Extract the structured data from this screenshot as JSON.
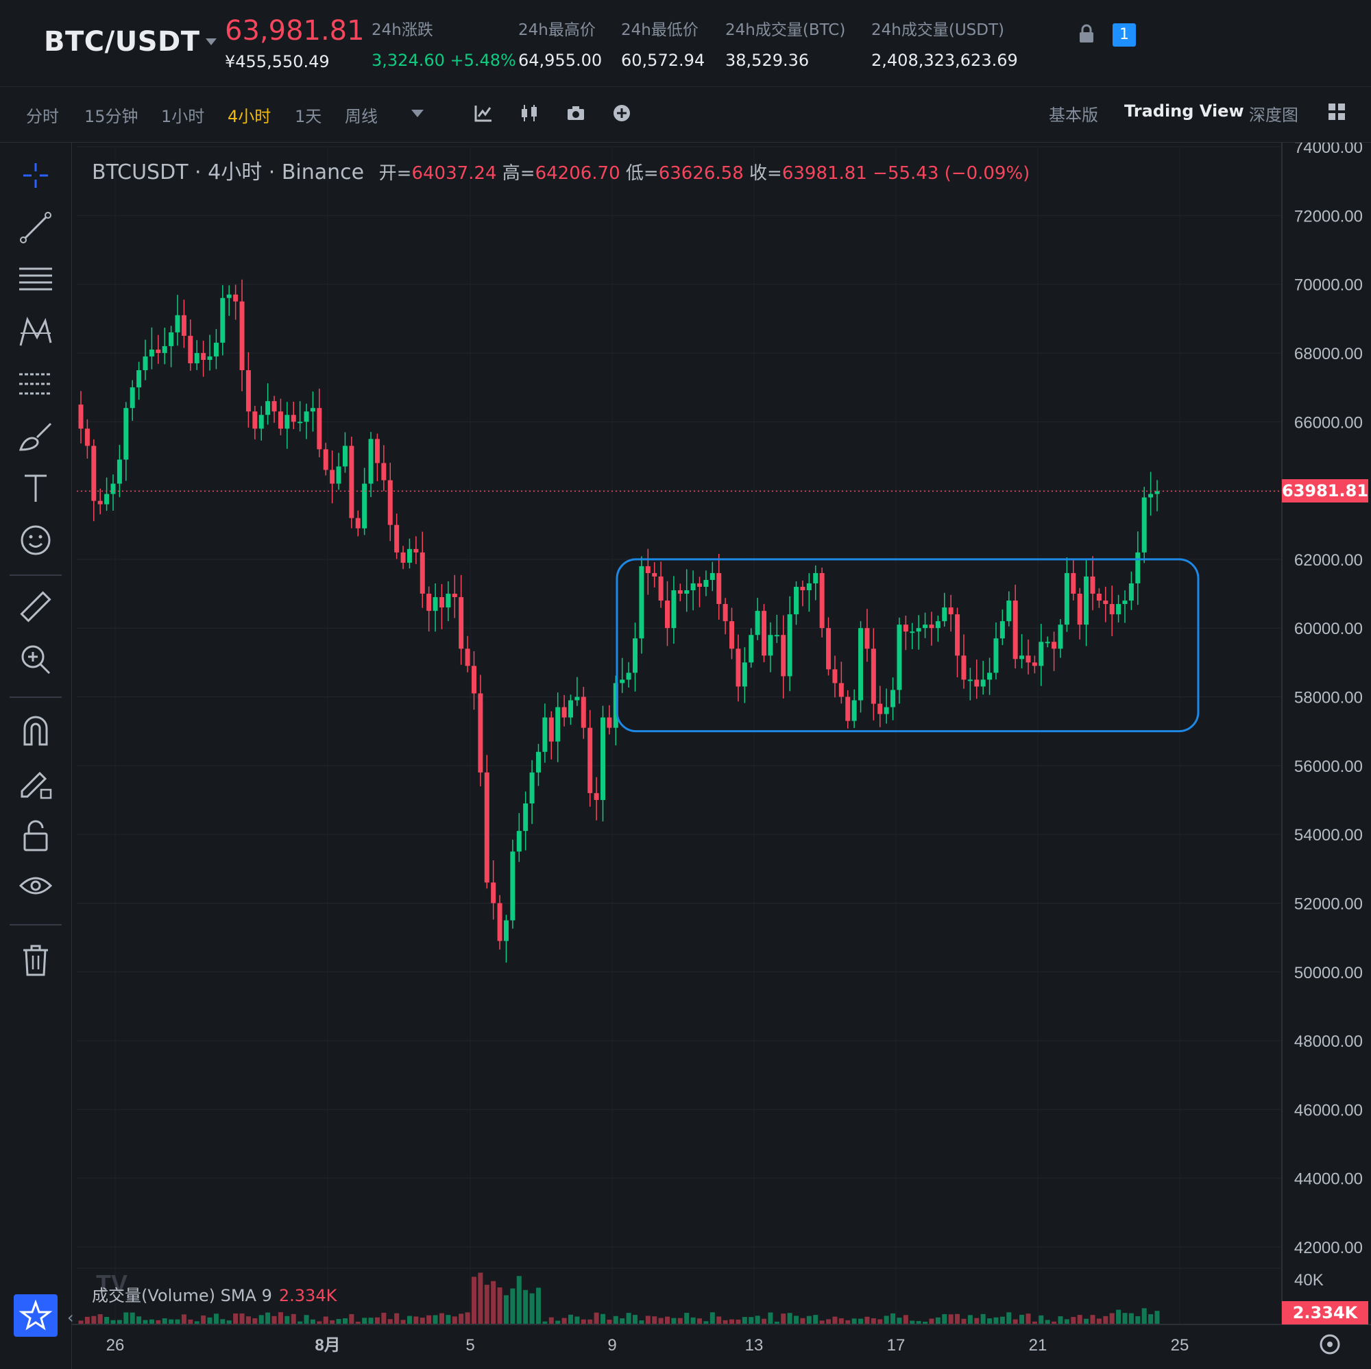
{
  "header": {
    "pair": "BTC/USDT",
    "last_price": "63,981.81",
    "cny_price": "¥455,550.49",
    "stats": [
      {
        "label": "24h涨跌",
        "value": "3,324.60 +5.48%",
        "positive": true
      },
      {
        "label": "24h最高价",
        "value": "64,955.00"
      },
      {
        "label": "24h最低价",
        "value": "60,572.94"
      },
      {
        "label": "24h成交量(BTC)",
        "value": "38,529.36"
      },
      {
        "label": "24h成交量(USDT)",
        "value": "2,408,323,623.69"
      }
    ],
    "layout_badge": "1"
  },
  "toolbar": {
    "intervals": [
      "分时",
      "15分钟",
      "1小时",
      "4小时",
      "1天",
      "周线"
    ],
    "active_interval": "4小时",
    "icons": [
      "indicator-icon",
      "candle-style-icon",
      "camera-icon",
      "add-icon"
    ],
    "views": [
      "基本版",
      "Trading View",
      "深度图"
    ],
    "active_view": "Trading View"
  },
  "left_tools": [
    "crosshair-icon",
    "trend-line-icon",
    "horizontal-lines-icon",
    "pattern-icon",
    "fib-icon",
    "brush-icon",
    "text-icon",
    "emoji-icon",
    "ruler-icon",
    "zoom-in-icon",
    "magnet-icon",
    "lock-draw-icon",
    "unlock-icon",
    "eye-icon",
    "trash-icon",
    "star-icon"
  ],
  "legend": {
    "title": "BTCUSDT · 4小时 · Binance",
    "open_label": "开=",
    "open": "64037.24",
    "high_label": "高=",
    "high": "64206.70",
    "low_label": "低=",
    "low": "63626.58",
    "close_label": "收=",
    "close": "63981.81",
    "change": "−55.43 (−0.09%)"
  },
  "volume_legend": {
    "label": "成交量(Volume) SMA 9",
    "value": "2.334K"
  },
  "price_tag": "63981.81",
  "volume_tag": "2.334K",
  "colors": {
    "up": "#0ecb81",
    "down": "#f6465d",
    "box": "#1e88e5",
    "background": "#161a1e"
  },
  "chart_data": {
    "type": "candlestick",
    "symbol": "BTCUSDT",
    "interval": "4小时",
    "exchange": "Binance",
    "ylim": [
      41000,
      74000
    ],
    "y_ticks": [
      "74000.00",
      "72000.00",
      "70000.00",
      "68000.00",
      "66000.00",
      "64000.00",
      "62000.00",
      "60000.00",
      "58000.00",
      "56000.00",
      "54000.00",
      "52000.00",
      "50000.00",
      "48000.00",
      "46000.00",
      "44000.00",
      "42000.00"
    ],
    "x_ticks": [
      "26",
      "8月",
      "5",
      "9",
      "13",
      "17",
      "21",
      "25"
    ],
    "volume_axis_tick": "40K",
    "current_price": 63981.81,
    "closes": [
      65800,
      65300,
      63700,
      63600,
      63900,
      64200,
      64900,
      66400,
      67000,
      67500,
      67900,
      68100,
      68000,
      68200,
      68600,
      69100,
      68500,
      67700,
      68000,
      67800,
      67900,
      68300,
      69600,
      69700,
      69500,
      67500,
      66300,
      65800,
      66200,
      66600,
      66300,
      65800,
      66200,
      66000,
      66000,
      66300,
      66400,
      65200,
      64600,
      64200,
      64700,
      65300,
      63200,
      62900,
      64200,
      65500,
      64800,
      64300,
      63000,
      62200,
      61900,
      62300,
      62200,
      61000,
      60500,
      60900,
      60600,
      61000,
      60900,
      59400,
      58900,
      58100,
      55800,
      52600,
      52000,
      50900,
      51500,
      53500,
      54100,
      54900,
      55800,
      56400,
      57400,
      56700,
      57700,
      57400,
      57900,
      58000,
      57100,
      55200,
      55000,
      57400,
      57100,
      58400,
      58500,
      58700,
      59700,
      61800,
      61600,
      61500,
      60800,
      60000,
      61100,
      61000,
      61100,
      61300,
      61200,
      61400,
      61600,
      60700,
      60200,
      59400,
      58300,
      59000,
      59800,
      60500,
      59200,
      59800,
      59800,
      58600,
      60400,
      61200,
      61100,
      61300,
      61600,
      60000,
      58800,
      58400,
      58000,
      57300,
      57900,
      60000,
      59400,
      57800,
      57500,
      57700,
      58200,
      60100,
      59900,
      59900,
      60000,
      60100,
      60000,
      60200,
      60600,
      60400,
      59200,
      58500,
      58500,
      58300,
      58500,
      58700,
      59700,
      60200,
      60800,
      59100,
      59200,
      59000,
      58900,
      59600,
      59600,
      59400,
      60100,
      61600,
      61000,
      60100,
      61500,
      61000,
      60800,
      60700,
      60400,
      60700,
      60800,
      61300,
      62200,
      63800,
      63900,
      63981.81
    ],
    "box": {
      "x_from": "9",
      "x_to": "24",
      "y_from": 57000,
      "y_to": 62000
    },
    "volume": "bars under price, values relative, peak near 5 Aug"
  }
}
